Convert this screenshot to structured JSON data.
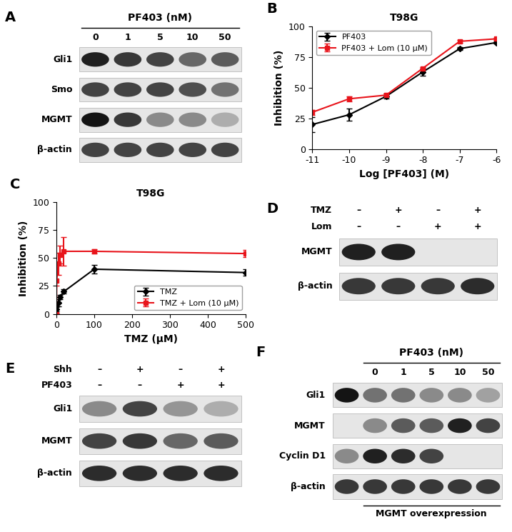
{
  "chart_data": [
    {
      "type": "line",
      "annotations": [
        "B"
      ],
      "title": "T98G",
      "x_label": "Log [PF403] (M)",
      "y_label": "Inhibition (%)",
      "x": [
        -11,
        -10,
        -9,
        -8,
        -7,
        -6
      ],
      "series": [
        {
          "name": "PF403",
          "color": "#000000",
          "marker": "diamond",
          "values": [
            20,
            28,
            43,
            63,
            82,
            87
          ],
          "errors": [
            6,
            5,
            2,
            3,
            1,
            1
          ]
        },
        {
          "name": "PF403 + Lom (10 μM)",
          "color": "#e8141b",
          "marker": "square",
          "values": [
            30,
            41,
            44,
            66,
            88,
            90
          ],
          "errors": [
            2,
            2,
            1,
            1,
            1,
            1
          ]
        }
      ],
      "xlim": [
        -11,
        -6
      ],
      "xticks": [
        -11,
        -10,
        -9,
        -8,
        -7,
        -6
      ],
      "ylim": [
        0,
        100
      ],
      "yticks": [
        0,
        25,
        50,
        75,
        100
      ],
      "legend": "upper left"
    },
    {
      "type": "line",
      "annotations": [
        "C"
      ],
      "title": "T98G",
      "x_label": "TMZ (μM)",
      "y_label": "Inhibition (%)",
      "x": [
        0,
        1,
        5,
        10,
        20,
        100,
        500
      ],
      "series": [
        {
          "name": "TMZ",
          "color": "#000000",
          "marker": "diamond",
          "values": [
            0,
            4,
            10,
            15,
            20,
            40,
            37
          ],
          "errors": [
            0,
            2,
            3,
            2,
            2,
            4,
            3
          ]
        },
        {
          "name": "TMZ + Lom (10 μM)",
          "color": "#e8141b",
          "marker": "square",
          "values": [
            0,
            30,
            45,
            53,
            56,
            56,
            54
          ],
          "errors": [
            0,
            5,
            10,
            8,
            13,
            2,
            3
          ]
        }
      ],
      "xlim": [
        0,
        500
      ],
      "xticks": [
        0,
        100,
        200,
        300,
        400,
        500
      ],
      "ylim": [
        0,
        100
      ],
      "yticks": [
        0,
        25,
        50,
        75,
        100
      ],
      "legend": "lower right"
    }
  ],
  "blots": [
    {
      "panel": "A",
      "title": "PF403 (nM)",
      "lane_labels": [
        "0",
        "1",
        "5",
        "10",
        "50"
      ],
      "conditions": [],
      "footer": null,
      "rows": [
        {
          "name": "Gli1",
          "intensity": [
            0.95,
            0.85,
            0.8,
            0.65,
            0.7
          ]
        },
        {
          "name": "Smo",
          "intensity": [
            0.8,
            0.8,
            0.8,
            0.75,
            0.6
          ]
        },
        {
          "name": "MGMT",
          "intensity": [
            1.0,
            0.85,
            0.5,
            0.5,
            0.35
          ]
        },
        {
          "name": "β-actin",
          "intensity": [
            0.8,
            0.8,
            0.8,
            0.8,
            0.8
          ]
        }
      ]
    },
    {
      "panel": "D",
      "title": null,
      "lane_labels": null,
      "conditions": [
        {
          "name": "TMZ",
          "lanes": [
            "–",
            "+",
            "–",
            "+"
          ]
        },
        {
          "name": "Lom",
          "lanes": [
            "–",
            "–",
            "+",
            "+"
          ]
        }
      ],
      "footer": null,
      "rows": [
        {
          "name": "MGMT",
          "intensity": [
            0.95,
            0.95,
            0,
            0
          ]
        },
        {
          "name": "β-actin",
          "intensity": [
            0.85,
            0.85,
            0.85,
            0.9
          ]
        }
      ]
    },
    {
      "panel": "E",
      "title": null,
      "lane_labels": null,
      "conditions": [
        {
          "name": "Shh",
          "lanes": [
            "–",
            "+",
            "–",
            "+"
          ]
        },
        {
          "name": "PF403",
          "lanes": [
            "–",
            "–",
            "+",
            "+"
          ]
        }
      ],
      "footer": null,
      "rows": [
        {
          "name": "Gli1",
          "intensity": [
            0.5,
            0.8,
            0.45,
            0.35
          ]
        },
        {
          "name": "MGMT",
          "intensity": [
            0.8,
            0.85,
            0.65,
            0.7
          ]
        },
        {
          "name": "β-actin",
          "intensity": [
            0.9,
            0.9,
            0.9,
            0.9
          ]
        }
      ]
    },
    {
      "panel": "F",
      "title": "PF403 (nM)",
      "lane_labels": [
        null,
        "0",
        "1",
        "5",
        "10",
        "50"
      ],
      "conditions": [],
      "footer": "MGMT overexpression",
      "rows": [
        {
          "name": "Gli1",
          "intensity": [
            1.0,
            0.6,
            0.6,
            0.5,
            0.5,
            0.4
          ]
        },
        {
          "name": "MGMT",
          "intensity": [
            0,
            0.5,
            0.7,
            0.7,
            0.95,
            0.8
          ]
        },
        {
          "name": "Cyclin D1",
          "intensity": [
            0.5,
            0.95,
            0.9,
            0.8,
            0,
            0
          ]
        },
        {
          "name": "β-actin",
          "intensity": [
            0.85,
            0.85,
            0.85,
            0.85,
            0.85,
            0.85
          ]
        }
      ]
    }
  ]
}
